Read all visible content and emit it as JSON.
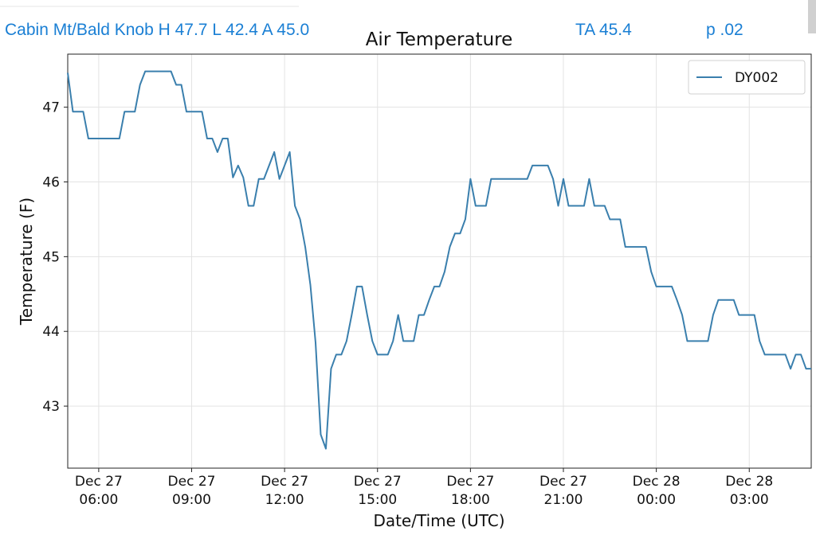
{
  "header": {
    "station": "Cabin Mt/Bald Knob H 47.7 L 42.4 A 45.0",
    "ta": "TA 45.4",
    "precip": "p .02"
  },
  "chart_data": {
    "type": "line",
    "title": "Air Temperature",
    "x_label": "Date/Time (UTC)",
    "y_label": "Temperature (F)",
    "x": [
      "Dec 27 05:00",
      "Dec 27 05:10",
      "Dec 27 05:30",
      "Dec 27 05:40",
      "Dec 27 06:40",
      "Dec 27 06:50",
      "Dec 27 07:10",
      "Dec 27 07:20",
      "Dec 27 07:30",
      "Dec 27 08:20",
      "Dec 27 08:30",
      "Dec 27 08:40",
      "Dec 27 08:50",
      "Dec 27 09:20",
      "Dec 27 09:30",
      "Dec 27 09:40",
      "Dec 27 09:50",
      "Dec 27 10:00",
      "Dec 27 10:10",
      "Dec 27 10:20",
      "Dec 27 10:30",
      "Dec 27 10:40",
      "Dec 27 10:50",
      "Dec 27 11:00",
      "Dec 27 11:10",
      "Dec 27 11:20",
      "Dec 27 11:30",
      "Dec 27 11:40",
      "Dec 27 11:50",
      "Dec 27 12:00",
      "Dec 27 12:10",
      "Dec 27 12:20",
      "Dec 27 12:30",
      "Dec 27 12:40",
      "Dec 27 12:50",
      "Dec 27 13:00",
      "Dec 27 13:10",
      "Dec 27 13:20",
      "Dec 27 13:30",
      "Dec 27 13:40",
      "Dec 27 13:50",
      "Dec 27 14:00",
      "Dec 27 14:10",
      "Dec 27 14:20",
      "Dec 27 14:30",
      "Dec 27 14:40",
      "Dec 27 14:50",
      "Dec 27 15:00",
      "Dec 27 15:20",
      "Dec 27 15:30",
      "Dec 27 15:40",
      "Dec 27 15:50",
      "Dec 27 16:10",
      "Dec 27 16:20",
      "Dec 27 16:30",
      "Dec 27 16:40",
      "Dec 27 16:50",
      "Dec 27 17:00",
      "Dec 27 17:10",
      "Dec 27 17:20",
      "Dec 27 17:30",
      "Dec 27 17:40",
      "Dec 27 17:50",
      "Dec 27 18:00",
      "Dec 27 18:10",
      "Dec 27 18:30",
      "Dec 27 18:40",
      "Dec 27 19:50",
      "Dec 27 20:00",
      "Dec 27 20:30",
      "Dec 27 20:40",
      "Dec 27 20:50",
      "Dec 27 21:00",
      "Dec 27 21:10",
      "Dec 27 21:40",
      "Dec 27 21:50",
      "Dec 27 22:00",
      "Dec 27 22:20",
      "Dec 27 22:30",
      "Dec 27 22:50",
      "Dec 27 23:00",
      "Dec 27 23:40",
      "Dec 27 23:50",
      "Dec 28 00:00",
      "Dec 28 00:30",
      "Dec 28 00:40",
      "Dec 28 00:50",
      "Dec 28 01:00",
      "Dec 28 01:40",
      "Dec 28 01:50",
      "Dec 28 02:00",
      "Dec 28 02:30",
      "Dec 28 02:40",
      "Dec 28 03:10",
      "Dec 28 03:20",
      "Dec 28 03:30",
      "Dec 28 04:10",
      "Dec 28 04:20",
      "Dec 28 04:30",
      "Dec 28 04:40",
      "Dec 28 04:50",
      "Dec 28 05:00"
    ],
    "series": [
      {
        "name": "DY002",
        "color": "#3a7fad",
        "values": [
          47.46,
          46.94,
          46.94,
          46.58,
          46.58,
          46.94,
          46.94,
          47.3,
          47.48,
          47.48,
          47.3,
          47.3,
          46.94,
          46.94,
          46.58,
          46.58,
          46.4,
          46.58,
          46.58,
          46.06,
          46.22,
          46.06,
          45.68,
          45.68,
          46.04,
          46.04,
          46.22,
          46.4,
          46.04,
          46.22,
          46.4,
          45.68,
          45.5,
          45.13,
          44.62,
          43.85,
          42.62,
          42.43,
          43.5,
          43.69,
          43.69,
          43.87,
          44.22,
          44.6,
          44.6,
          44.22,
          43.87,
          43.69,
          43.69,
          43.87,
          44.22,
          43.87,
          43.87,
          44.22,
          44.22,
          44.42,
          44.6,
          44.6,
          44.8,
          45.13,
          45.31,
          45.31,
          45.5,
          46.04,
          45.68,
          45.68,
          46.04,
          46.04,
          46.22,
          46.22,
          46.04,
          45.68,
          46.04,
          45.68,
          45.68,
          46.04,
          45.68,
          45.68,
          45.5,
          45.5,
          45.13,
          45.13,
          44.8,
          44.6,
          44.6,
          44.42,
          44.22,
          43.87,
          43.87,
          44.22,
          44.42,
          44.42,
          44.22,
          44.22,
          43.87,
          43.69,
          43.69,
          43.5,
          43.69,
          43.69,
          43.5,
          43.5
        ]
      }
    ],
    "xlim": [
      "Dec 27 05:00",
      "Dec 28 05:00"
    ],
    "xticks": [
      {
        "value": "Dec 27 06:00",
        "label": "Dec 27\n06:00"
      },
      {
        "value": "Dec 27 09:00",
        "label": "Dec 27\n09:00"
      },
      {
        "value": "Dec 27 12:00",
        "label": "Dec 27\n12:00"
      },
      {
        "value": "Dec 27 15:00",
        "label": "Dec 27\n15:00"
      },
      {
        "value": "Dec 27 18:00",
        "label": "Dec 27\n18:00"
      },
      {
        "value": "Dec 27 21:00",
        "label": "Dec 27\n21:00"
      },
      {
        "value": "Dec 28 00:00",
        "label": "Dec 28\n00:00"
      },
      {
        "value": "Dec 28 03:00",
        "label": "Dec 28\n03:00"
      }
    ],
    "ylim": [
      42.17,
      47.71
    ],
    "yticks": [
      43,
      44,
      45,
      46,
      47
    ],
    "grid": true,
    "legend": "upper right"
  }
}
